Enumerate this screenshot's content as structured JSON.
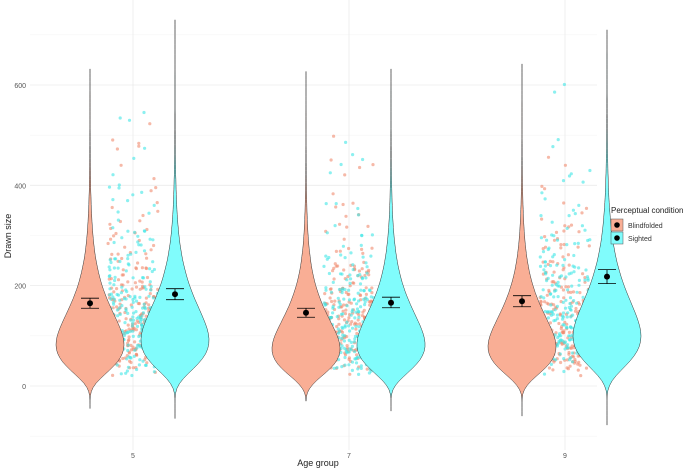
{
  "chart_data": {
    "type": "violin",
    "title": "",
    "xlabel": "Age group",
    "ylabel": "Drawn size",
    "ylim": [
      -110,
      770
    ],
    "yticks": [
      0,
      200,
      400,
      600
    ],
    "categories": [
      "5",
      "7",
      "9"
    ],
    "grid": true,
    "legend": {
      "title": "Perceptual condition",
      "placement": "right",
      "entries": [
        "Blindfolded",
        "Sighted"
      ]
    },
    "colors": {
      "Blindfolded": "#F9AE95",
      "Sighted": "#80FCFC",
      "BlindfoldedPoint": "#F08A6E",
      "SightedPoint": "#3FE6E6"
    },
    "series": [
      {
        "name": "Blindfolded",
        "mean": [
          165,
          146,
          169
        ],
        "error_low": [
          155,
          137,
          158
        ],
        "error_high": [
          175,
          155,
          180
        ],
        "min": [
          -45,
          -30,
          -60
        ],
        "max": [
          632,
          627,
          642
        ],
        "mode": [
          110,
          100,
          105
        ]
      },
      {
        "name": "Sighted",
        "mean": [
          183,
          166,
          218
        ],
        "error_low": [
          172,
          156,
          204
        ],
        "error_high": [
          194,
          177,
          232
        ],
        "min": [
          -65,
          -50,
          -78
        ],
        "max": [
          730,
          632,
          710
        ],
        "mode": [
          120,
          110,
          130
        ]
      }
    ]
  }
}
